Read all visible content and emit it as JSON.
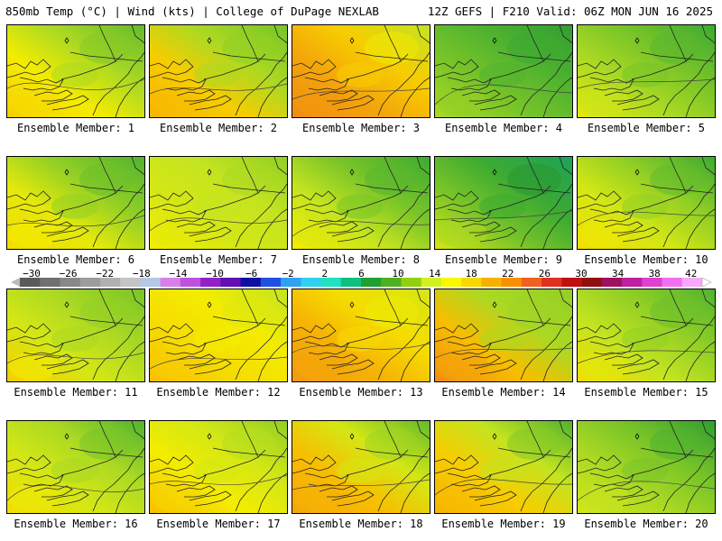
{
  "header": {
    "left": "850mb Temp (°C) | Wind (kts) | College of DuPage NEXLAB",
    "right": "12Z GEFS | F210 Valid: 06Z MON JUN 16 2025"
  },
  "colorbar": {
    "labels": [
      "−30",
      "−26",
      "−22",
      "−18",
      "−14",
      "−10",
      "−6",
      "−2",
      "2",
      "6",
      "10",
      "14",
      "18",
      "22",
      "26",
      "30",
      "34",
      "38",
      "42"
    ],
    "colors": [
      "#5a5a5a",
      "#707070",
      "#888888",
      "#9c9c9c",
      "#b0b0b0",
      "#c4c4c4",
      "#b4c8e6",
      "#d880e8",
      "#c050e0",
      "#9020c8",
      "#6010b0",
      "#1010a0",
      "#2050e0",
      "#30a0f0",
      "#30d0f0",
      "#20e0c0",
      "#10c080",
      "#20a030",
      "#50b020",
      "#90d010",
      "#d0f020",
      "#f8f800",
      "#f8d800",
      "#f8b000",
      "#f89000",
      "#f06020",
      "#e03020",
      "#c01010",
      "#901010",
      "#a01060",
      "#c020a0",
      "#e040d0",
      "#f070f0",
      "#f8a8f8"
    ]
  },
  "members": [
    {
      "label": "Ensemble Member: 1",
      "field": [
        0.35,
        0.55,
        0.7,
        0.25
      ]
    },
    {
      "label": "Ensemble Member: 2",
      "field": [
        0.25,
        0.55,
        0.65,
        0.15
      ]
    },
    {
      "label": "Ensemble Member: 3",
      "field": [
        0.1,
        0.25,
        0.5,
        0.0
      ]
    },
    {
      "label": "Ensemble Member: 4",
      "field": [
        0.65,
        0.75,
        0.85,
        0.55
      ]
    },
    {
      "label": "Ensemble Member: 5",
      "field": [
        0.55,
        0.65,
        0.8,
        0.4
      ]
    },
    {
      "label": "Ensemble Member: 6",
      "field": [
        0.4,
        0.6,
        0.75,
        0.3
      ]
    },
    {
      "label": "Ensemble Member: 7",
      "field": [
        0.45,
        0.5,
        0.6,
        0.35
      ]
    },
    {
      "label": "Ensemble Member: 8",
      "field": [
        0.5,
        0.65,
        0.8,
        0.35
      ]
    },
    {
      "label": "Ensemble Member: 9",
      "field": [
        0.65,
        0.8,
        0.95,
        0.45
      ]
    },
    {
      "label": "Ensemble Member: 10",
      "field": [
        0.45,
        0.6,
        0.8,
        0.3
      ]
    },
    {
      "label": "Ensemble Member: 11",
      "field": [
        0.45,
        0.55,
        0.65,
        0.25
      ]
    },
    {
      "label": "Ensemble Member: 12",
      "field": [
        0.3,
        0.35,
        0.5,
        0.2
      ]
    },
    {
      "label": "Ensemble Member: 13",
      "field": [
        0.15,
        0.3,
        0.45,
        0.05
      ]
    },
    {
      "label": "Ensemble Member: 14",
      "field": [
        0.2,
        0.55,
        0.6,
        0.0
      ]
    },
    {
      "label": "Ensemble Member: 15",
      "field": [
        0.5,
        0.6,
        0.75,
        0.3
      ]
    },
    {
      "label": "Ensemble Member: 16",
      "field": [
        0.45,
        0.55,
        0.75,
        0.3
      ]
    },
    {
      "label": "Ensemble Member: 17",
      "field": [
        0.35,
        0.45,
        0.6,
        0.2
      ]
    },
    {
      "label": "Ensemble Member: 18",
      "field": [
        0.2,
        0.45,
        0.7,
        0.1
      ]
    },
    {
      "label": "Ensemble Member: 19",
      "field": [
        0.25,
        0.5,
        0.75,
        0.15
      ]
    },
    {
      "label": "Ensemble Member: 20",
      "field": [
        0.55,
        0.65,
        0.85,
        0.45
      ]
    }
  ]
}
